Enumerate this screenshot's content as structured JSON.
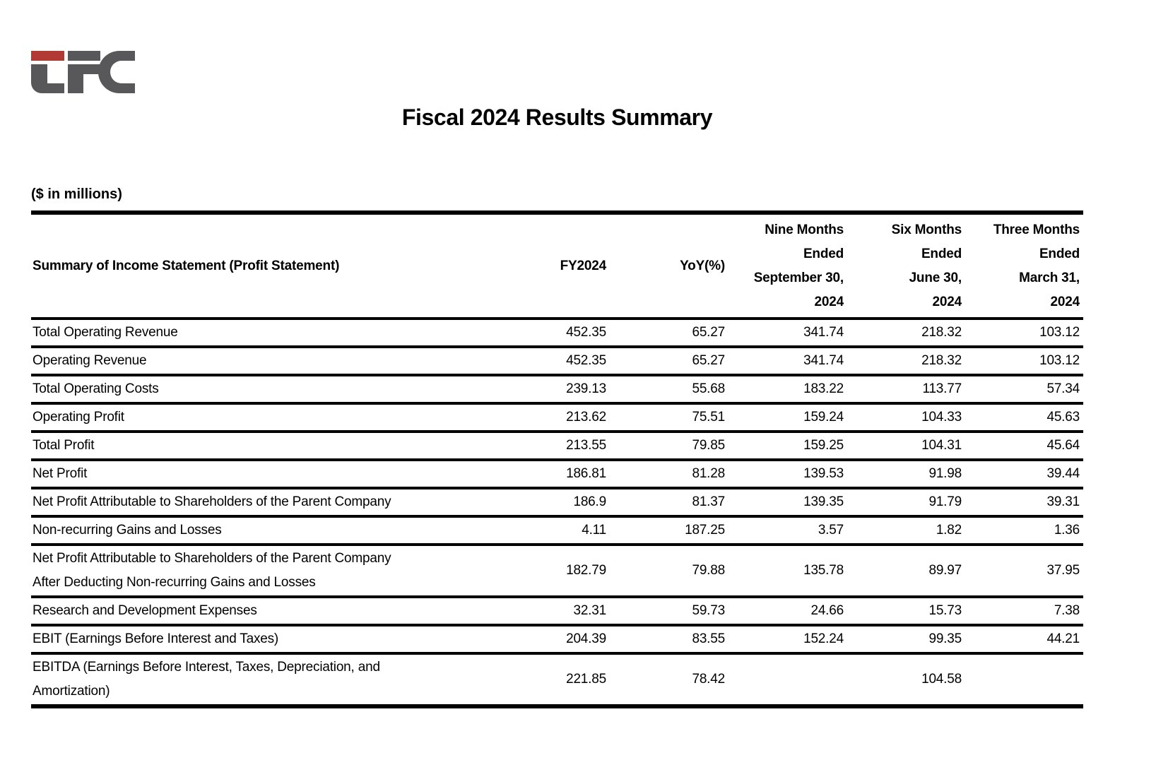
{
  "brand": {
    "logo_letters": "LFC",
    "logo_red": "#b13a34",
    "logo_gray": "#58585a"
  },
  "title": "Fiscal 2024 Results Summary",
  "units_note": "($ in millions)",
  "table": {
    "columns": [
      {
        "label": "Summary of Income Statement (Profit Statement)"
      },
      {
        "label": "FY2024"
      },
      {
        "label": "YoY(%)"
      },
      {
        "label": "Nine Months Ended September 30, 2024",
        "lines": [
          "Nine Months",
          "Ended",
          "September 30,",
          "2024"
        ]
      },
      {
        "label": "Six Months Ended June 30, 2024",
        "lines": [
          "Six Months",
          "Ended",
          "June 30,",
          "2024"
        ]
      },
      {
        "label": "Three Months Ended March 31, 2024",
        "lines": [
          "Three Months",
          "Ended",
          "March 31,",
          "2024"
        ]
      }
    ],
    "rows": [
      {
        "label": "Total Operating Revenue",
        "values": [
          "452.35",
          "65.27",
          "341.74",
          "218.32",
          "103.12"
        ]
      },
      {
        "label": "Operating Revenue",
        "values": [
          "452.35",
          "65.27",
          "341.74",
          "218.32",
          "103.12"
        ]
      },
      {
        "label": "Total Operating Costs",
        "values": [
          "239.13",
          "55.68",
          "183.22",
          "113.77",
          "57.34"
        ]
      },
      {
        "label": "Operating Profit",
        "values": [
          "213.62",
          "75.51",
          "159.24",
          "104.33",
          "45.63"
        ]
      },
      {
        "label": "Total Profit",
        "values": [
          "213.55",
          "79.85",
          "159.25",
          "104.31",
          "45.64"
        ]
      },
      {
        "label": "Net Profit",
        "values": [
          "186.81",
          "81.28",
          "139.53",
          "91.98",
          "39.44"
        ]
      },
      {
        "label": "Net Profit Attributable to Shareholders of the Parent Company",
        "values": [
          "186.9",
          "81.37",
          "139.35",
          "91.79",
          "39.31"
        ]
      },
      {
        "label": "Non-recurring Gains and Losses",
        "values": [
          "4.11",
          "187.25",
          "3.57",
          "1.82",
          "1.36"
        ]
      },
      {
        "label": "Net Profit Attributable to Shareholders of the Parent Company After Deducting Non-recurring Gains and Losses",
        "label_lines": [
          "Net Profit Attributable to Shareholders of the Parent Company",
          "After Deducting Non-recurring Gains and Losses"
        ],
        "values": [
          "182.79",
          "79.88",
          "135.78",
          "89.97",
          "37.95"
        ]
      },
      {
        "label": "Research and Development Expenses",
        "values": [
          "32.31",
          "59.73",
          "24.66",
          "15.73",
          "7.38"
        ]
      },
      {
        "label": "EBIT (Earnings Before Interest and Taxes)",
        "values": [
          "204.39",
          "83.55",
          "152.24",
          "99.35",
          "44.21"
        ]
      },
      {
        "label": "EBITDA (Earnings Before Interest, Taxes, Depreciation, and Amortization)",
        "label_lines": [
          "EBITDA (Earnings Before Interest, Taxes, Depreciation, and",
          "Amortization)"
        ],
        "values": [
          "221.85",
          "78.42",
          "",
          "104.58",
          ""
        ]
      }
    ]
  }
}
